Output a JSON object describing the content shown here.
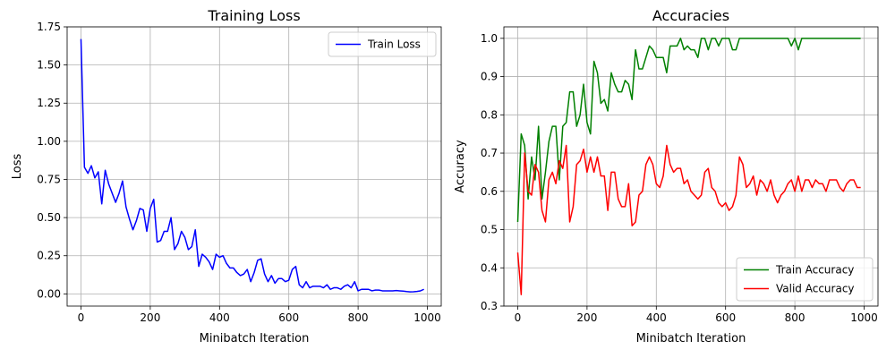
{
  "chart_data": [
    {
      "type": "line",
      "title": "Training Loss",
      "xlabel": "Minibatch Iteration",
      "ylabel": "Loss",
      "xlim": [
        -40,
        1040
      ],
      "ylim": [
        -0.08,
        1.75
      ],
      "xticks": [
        0,
        200,
        400,
        600,
        800,
        1000
      ],
      "yticks": [
        0.0,
        0.25,
        0.5,
        0.75,
        1.0,
        1.25,
        1.5,
        1.75
      ],
      "ytick_format": 2,
      "grid": true,
      "legend": "top-right",
      "series": [
        {
          "name": "Train Loss",
          "color": "#0000ff",
          "x": [
            0,
            10,
            20,
            30,
            40,
            50,
            60,
            70,
            80,
            90,
            100,
            110,
            120,
            130,
            140,
            150,
            160,
            170,
            180,
            190,
            200,
            210,
            220,
            230,
            240,
            250,
            260,
            270,
            280,
            290,
            300,
            310,
            320,
            330,
            340,
            350,
            360,
            370,
            380,
            390,
            400,
            410,
            420,
            430,
            440,
            450,
            460,
            470,
            480,
            490,
            500,
            510,
            520,
            530,
            540,
            550,
            560,
            570,
            580,
            590,
            600,
            610,
            620,
            630,
            640,
            650,
            660,
            670,
            680,
            690,
            700,
            710,
            720,
            730,
            740,
            750,
            760,
            770,
            780,
            790,
            800,
            810,
            820,
            830,
            840,
            850,
            860,
            870,
            880,
            890,
            900,
            910,
            920,
            930,
            940,
            950,
            960,
            970,
            980,
            990
          ],
          "values": [
            1.67,
            0.83,
            0.79,
            0.84,
            0.76,
            0.8,
            0.59,
            0.81,
            0.72,
            0.66,
            0.6,
            0.66,
            0.74,
            0.57,
            0.49,
            0.42,
            0.48,
            0.56,
            0.55,
            0.41,
            0.56,
            0.62,
            0.34,
            0.35,
            0.41,
            0.41,
            0.5,
            0.29,
            0.33,
            0.41,
            0.37,
            0.29,
            0.31,
            0.42,
            0.18,
            0.26,
            0.24,
            0.21,
            0.16,
            0.26,
            0.24,
            0.25,
            0.2,
            0.17,
            0.17,
            0.14,
            0.12,
            0.13,
            0.16,
            0.08,
            0.14,
            0.22,
            0.23,
            0.13,
            0.08,
            0.12,
            0.07,
            0.1,
            0.1,
            0.08,
            0.09,
            0.16,
            0.18,
            0.06,
            0.04,
            0.08,
            0.04,
            0.05,
            0.05,
            0.05,
            0.04,
            0.06,
            0.03,
            0.04,
            0.04,
            0.03,
            0.05,
            0.06,
            0.04,
            0.08,
            0.02,
            0.03,
            0.03,
            0.03,
            0.02,
            0.025,
            0.025,
            0.02,
            0.02,
            0.02,
            0.02,
            0.022,
            0.02,
            0.018,
            0.015,
            0.013,
            0.014,
            0.016,
            0.02,
            0.03
          ]
        }
      ]
    },
    {
      "type": "line",
      "title": "Accuracies",
      "xlabel": "Minibatch Iteration",
      "ylabel": "Accuracy",
      "xlim": [
        -40,
        1040
      ],
      "ylim": [
        0.3,
        1.03
      ],
      "xticks": [
        0,
        200,
        400,
        600,
        800,
        1000
      ],
      "yticks": [
        0.3,
        0.4,
        0.5,
        0.6,
        0.7,
        0.8,
        0.9,
        1.0
      ],
      "ytick_format": 1,
      "grid": true,
      "legend": "bottom-right",
      "series": [
        {
          "name": "Train Accuracy",
          "color": "#008000",
          "x": [
            0,
            10,
            20,
            30,
            40,
            50,
            60,
            70,
            80,
            90,
            100,
            110,
            120,
            130,
            140,
            150,
            160,
            170,
            180,
            190,
            200,
            210,
            220,
            230,
            240,
            250,
            260,
            270,
            280,
            290,
            300,
            310,
            320,
            330,
            340,
            350,
            360,
            370,
            380,
            390,
            400,
            410,
            420,
            430,
            440,
            450,
            460,
            470,
            480,
            490,
            500,
            510,
            520,
            530,
            540,
            550,
            560,
            570,
            580,
            590,
            600,
            610,
            620,
            630,
            640,
            650,
            660,
            670,
            680,
            690,
            700,
            710,
            720,
            730,
            740,
            750,
            760,
            770,
            780,
            790,
            800,
            810,
            820,
            830,
            840,
            850,
            860,
            870,
            880,
            890,
            900,
            910,
            920,
            930,
            940,
            950,
            960,
            970,
            980,
            990
          ],
          "values": [
            0.52,
            0.75,
            0.72,
            0.58,
            0.69,
            0.63,
            0.77,
            0.58,
            0.65,
            0.73,
            0.77,
            0.77,
            0.63,
            0.77,
            0.78,
            0.86,
            0.86,
            0.77,
            0.8,
            0.88,
            0.78,
            0.75,
            0.94,
            0.91,
            0.83,
            0.84,
            0.81,
            0.91,
            0.88,
            0.86,
            0.86,
            0.89,
            0.88,
            0.84,
            0.97,
            0.92,
            0.92,
            0.95,
            0.98,
            0.97,
            0.95,
            0.95,
            0.95,
            0.91,
            0.98,
            0.98,
            0.98,
            1.0,
            0.97,
            0.98,
            0.97,
            0.97,
            0.95,
            1.0,
            1.0,
            0.97,
            1.0,
            1.0,
            0.98,
            1.0,
            1.0,
            1.0,
            0.97,
            0.97,
            1.0,
            1.0,
            1.0,
            1.0,
            1.0,
            1.0,
            1.0,
            1.0,
            1.0,
            1.0,
            1.0,
            1.0,
            1.0,
            1.0,
            1.0,
            0.98,
            1.0,
            0.97,
            1.0,
            1.0,
            1.0,
            1.0,
            1.0,
            1.0,
            1.0,
            1.0,
            1.0,
            1.0,
            1.0,
            1.0,
            1.0,
            1.0,
            1.0,
            1.0,
            1.0,
            1.0
          ]
        },
        {
          "name": "Valid Accuracy",
          "color": "#ff0000",
          "x": [
            0,
            10,
            20,
            30,
            40,
            50,
            60,
            70,
            80,
            90,
            100,
            110,
            120,
            130,
            140,
            150,
            160,
            170,
            180,
            190,
            200,
            210,
            220,
            230,
            240,
            250,
            260,
            270,
            280,
            290,
            300,
            310,
            320,
            330,
            340,
            350,
            360,
            370,
            380,
            390,
            400,
            410,
            420,
            430,
            440,
            450,
            460,
            470,
            480,
            490,
            500,
            510,
            520,
            530,
            540,
            550,
            560,
            570,
            580,
            590,
            600,
            610,
            620,
            630,
            640,
            650,
            660,
            670,
            680,
            690,
            700,
            710,
            720,
            730,
            740,
            750,
            760,
            770,
            780,
            790,
            800,
            810,
            820,
            830,
            840,
            850,
            860,
            870,
            880,
            890,
            900,
            910,
            920,
            930,
            940,
            950,
            960,
            970,
            980,
            990
          ],
          "values": [
            0.44,
            0.33,
            0.7,
            0.6,
            0.59,
            0.67,
            0.65,
            0.55,
            0.52,
            0.63,
            0.65,
            0.62,
            0.68,
            0.66,
            0.72,
            0.52,
            0.56,
            0.67,
            0.68,
            0.71,
            0.65,
            0.69,
            0.65,
            0.69,
            0.64,
            0.64,
            0.55,
            0.65,
            0.65,
            0.58,
            0.56,
            0.56,
            0.62,
            0.51,
            0.52,
            0.59,
            0.6,
            0.67,
            0.69,
            0.67,
            0.62,
            0.61,
            0.64,
            0.72,
            0.67,
            0.65,
            0.66,
            0.66,
            0.62,
            0.63,
            0.6,
            0.59,
            0.58,
            0.59,
            0.65,
            0.66,
            0.61,
            0.6,
            0.57,
            0.56,
            0.57,
            0.55,
            0.56,
            0.59,
            0.69,
            0.67,
            0.61,
            0.62,
            0.64,
            0.59,
            0.63,
            0.62,
            0.6,
            0.63,
            0.59,
            0.57,
            0.59,
            0.6,
            0.62,
            0.63,
            0.6,
            0.64,
            0.6,
            0.63,
            0.63,
            0.61,
            0.63,
            0.62,
            0.62,
            0.6,
            0.63,
            0.63,
            0.63,
            0.61,
            0.6,
            0.62,
            0.63,
            0.63,
            0.61,
            0.61
          ]
        }
      ]
    }
  ]
}
